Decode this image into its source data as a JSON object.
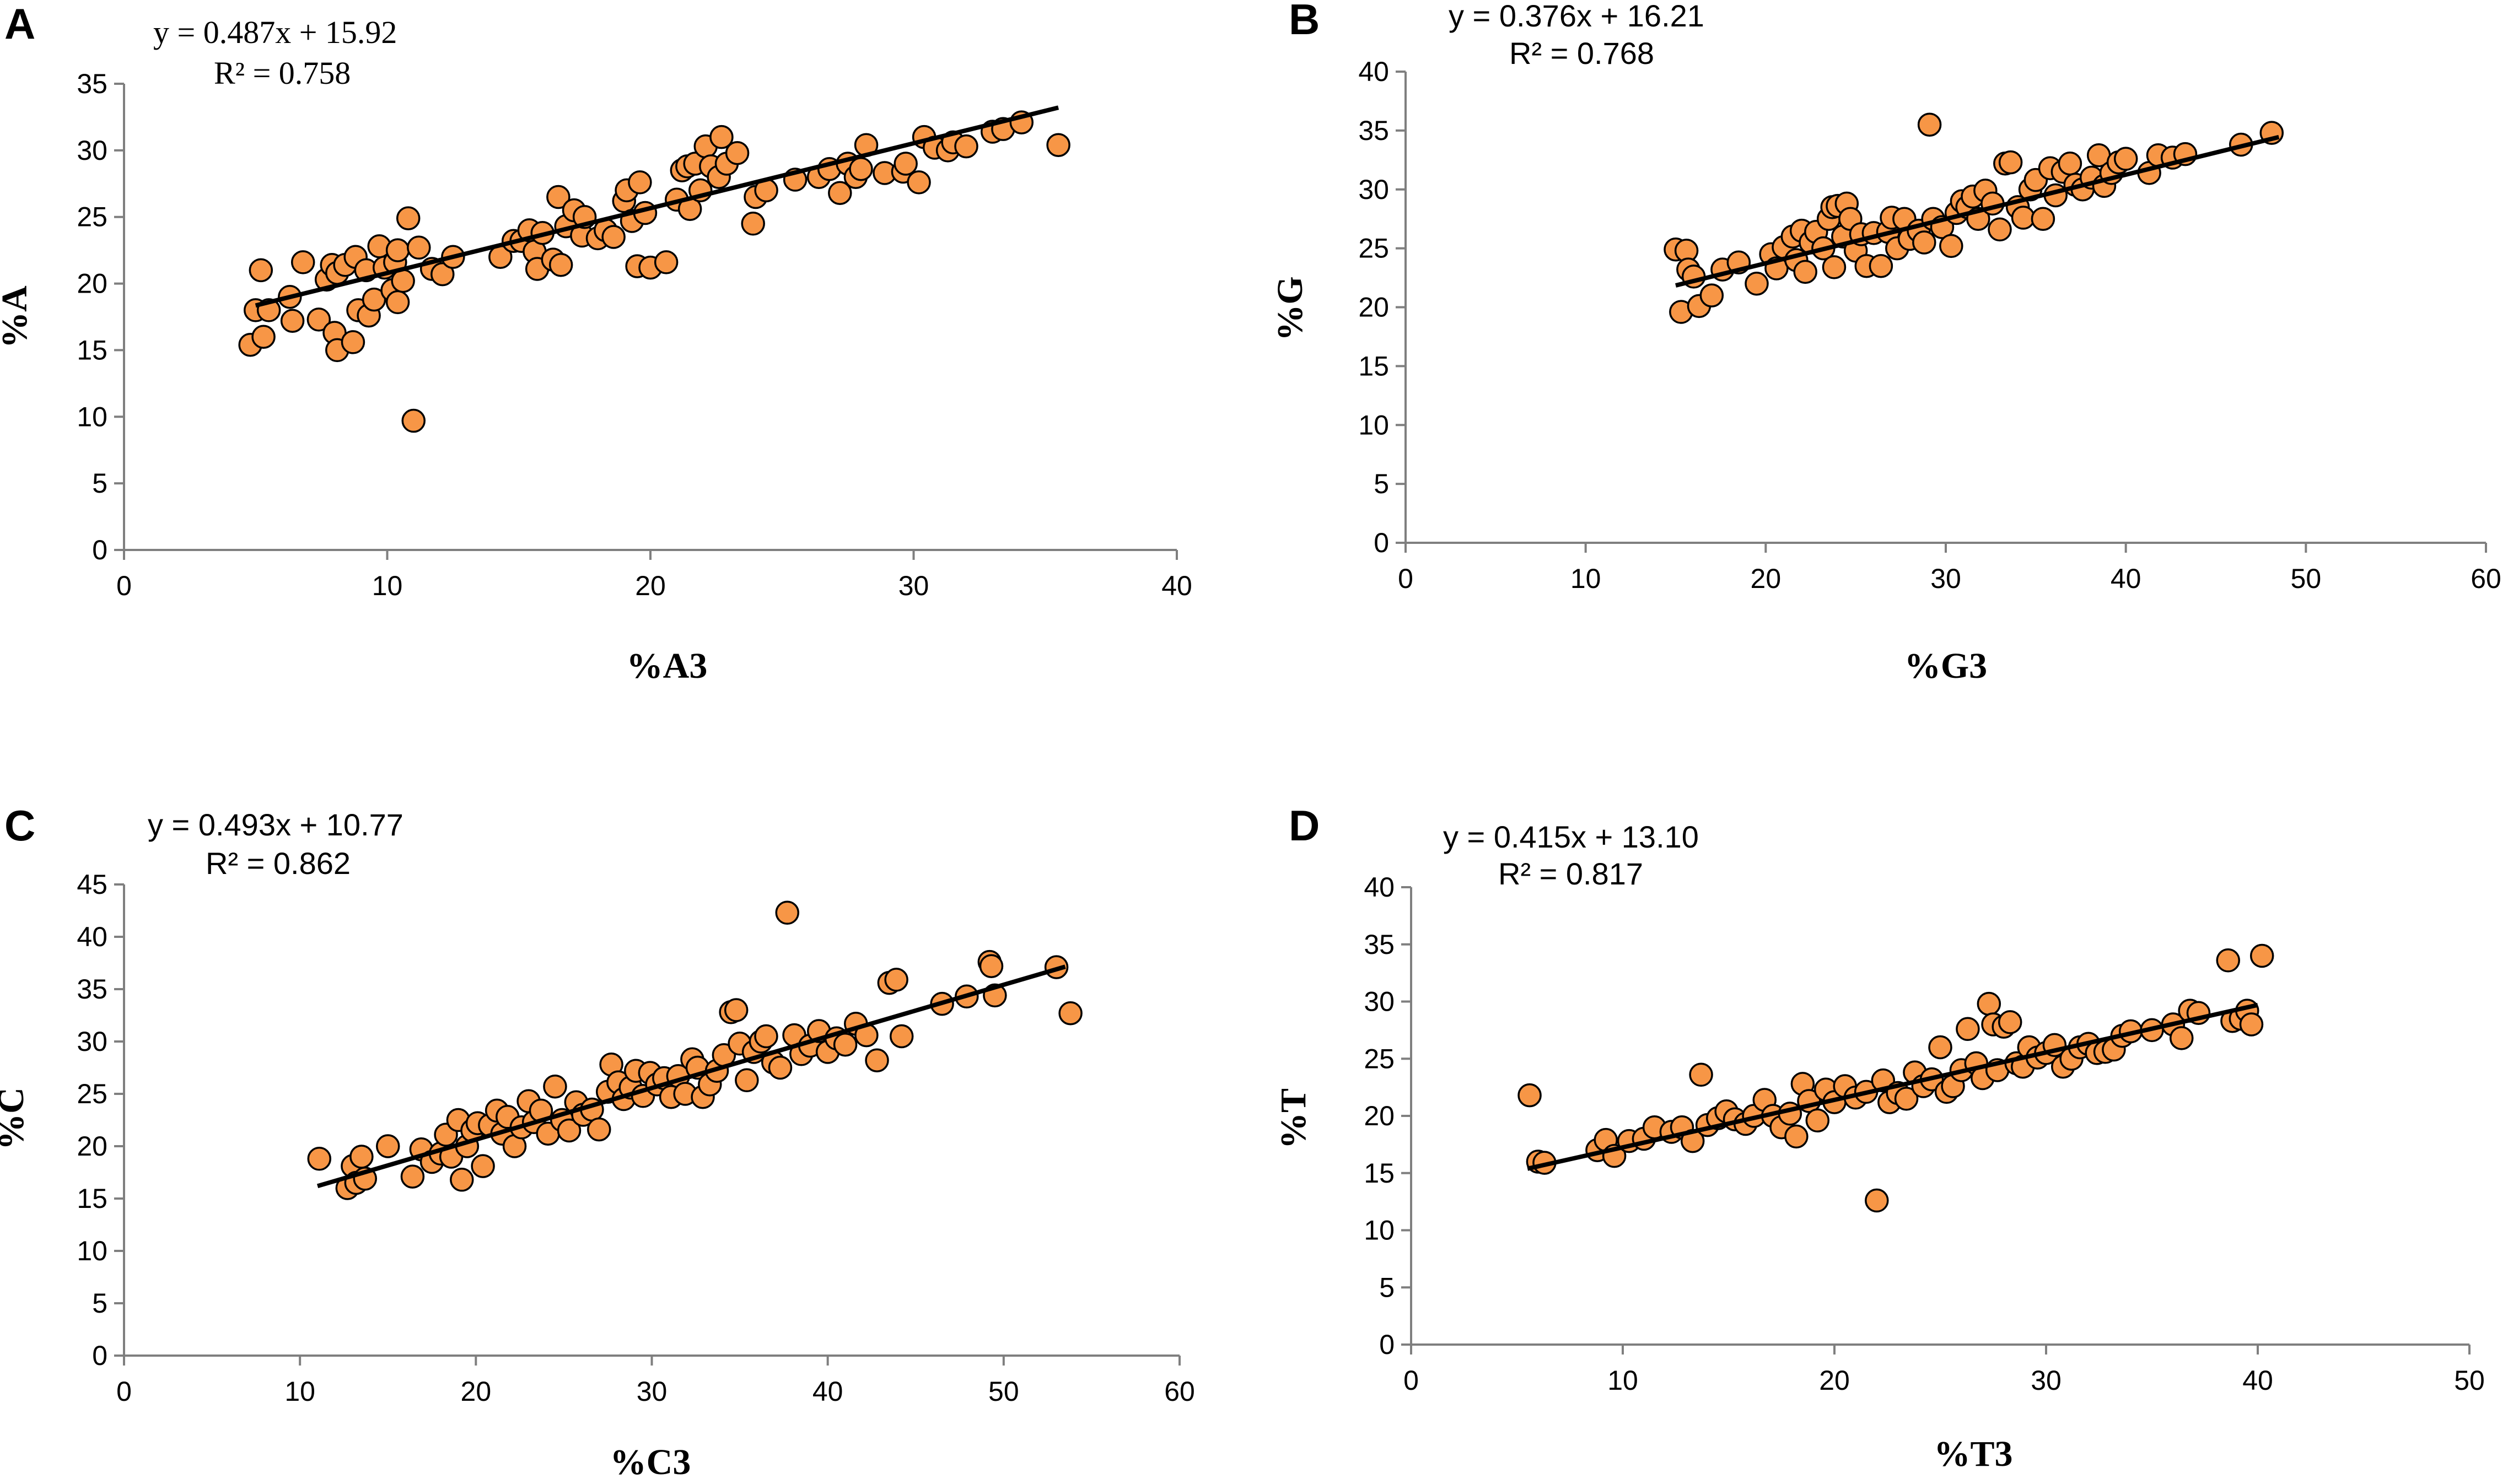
{
  "chart_data": [
    {
      "type": "scatter",
      "panel": "A",
      "equation": "y = 0.487x + 15.92",
      "r2": "R² = 0.758",
      "equation_font": "serif",
      "xlabel": "%A3",
      "ylabel": "%A",
      "xlim": [
        0,
        40
      ],
      "xstep": 10,
      "ylim": [
        0,
        35
      ],
      "ystep": 5,
      "trendline": {
        "slope": 0.487,
        "intercept": 15.92,
        "x_range": [
          5,
          35.5
        ]
      },
      "points": [
        [
          4.8,
          15.4
        ],
        [
          5.0,
          18.0
        ],
        [
          5.2,
          21.0
        ],
        [
          5.3,
          16.0
        ],
        [
          5.5,
          18.0
        ],
        [
          6.3,
          19.0
        ],
        [
          6.4,
          17.2
        ],
        [
          6.8,
          21.6
        ],
        [
          7.4,
          17.3
        ],
        [
          7.7,
          20.3
        ],
        [
          7.9,
          21.4
        ],
        [
          8.0,
          16.3
        ],
        [
          8.1,
          15.0
        ],
        [
          8.1,
          20.8
        ],
        [
          8.4,
          21.4
        ],
        [
          8.7,
          15.6
        ],
        [
          8.8,
          22.0
        ],
        [
          8.9,
          18.0
        ],
        [
          9.2,
          21.0
        ],
        [
          9.3,
          17.6
        ],
        [
          9.5,
          18.8
        ],
        [
          9.7,
          22.8
        ],
        [
          9.9,
          21.2
        ],
        [
          10.2,
          19.5
        ],
        [
          10.3,
          21.6
        ],
        [
          10.4,
          22.5
        ],
        [
          10.4,
          18.6
        ],
        [
          10.6,
          20.2
        ],
        [
          10.8,
          24.9
        ],
        [
          11.0,
          9.7
        ],
        [
          11.2,
          22.7
        ],
        [
          11.7,
          21.1
        ],
        [
          12.1,
          20.7
        ],
        [
          12.5,
          22.0
        ],
        [
          14.3,
          22.0
        ],
        [
          14.8,
          23.2
        ],
        [
          15.1,
          23.2
        ],
        [
          15.4,
          24.0
        ],
        [
          15.6,
          22.4
        ],
        [
          15.7,
          21.1
        ],
        [
          15.9,
          23.8
        ],
        [
          16.3,
          21.8
        ],
        [
          16.5,
          26.5
        ],
        [
          16.6,
          21.4
        ],
        [
          16.8,
          24.3
        ],
        [
          17.1,
          25.5
        ],
        [
          17.4,
          23.6
        ],
        [
          17.5,
          25.0
        ],
        [
          18.0,
          23.4
        ],
        [
          18.3,
          24.0
        ],
        [
          18.6,
          23.5
        ],
        [
          19.0,
          26.2
        ],
        [
          19.1,
          27.0
        ],
        [
          19.3,
          24.7
        ],
        [
          19.5,
          21.3
        ],
        [
          19.6,
          27.6
        ],
        [
          19.8,
          25.3
        ],
        [
          20.0,
          21.2
        ],
        [
          20.6,
          21.6
        ],
        [
          21.0,
          26.3
        ],
        [
          21.2,
          28.5
        ],
        [
          21.4,
          28.8
        ],
        [
          21.5,
          25.6
        ],
        [
          21.7,
          29.0
        ],
        [
          21.9,
          27.0
        ],
        [
          22.1,
          30.3
        ],
        [
          22.3,
          28.8
        ],
        [
          22.6,
          28.0
        ],
        [
          22.7,
          31.0
        ],
        [
          22.9,
          29.0
        ],
        [
          23.3,
          29.8
        ],
        [
          23.9,
          24.5
        ],
        [
          24.0,
          26.5
        ],
        [
          24.4,
          27.0
        ],
        [
          25.5,
          27.8
        ],
        [
          26.4,
          28.0
        ],
        [
          26.8,
          28.6
        ],
        [
          27.2,
          26.8
        ],
        [
          27.5,
          29.0
        ],
        [
          27.8,
          28.0
        ],
        [
          28.0,
          28.6
        ],
        [
          28.2,
          30.4
        ],
        [
          28.9,
          28.3
        ],
        [
          29.6,
          28.4
        ],
        [
          29.7,
          29.0
        ],
        [
          30.2,
          27.6
        ],
        [
          30.4,
          31.0
        ],
        [
          30.8,
          30.2
        ],
        [
          31.3,
          30.0
        ],
        [
          31.5,
          30.6
        ],
        [
          32.0,
          30.3
        ],
        [
          33.0,
          31.4
        ],
        [
          33.4,
          31.6
        ],
        [
          34.1,
          32.1
        ],
        [
          35.5,
          30.4
        ]
      ]
    },
    {
      "type": "scatter",
      "panel": "B",
      "equation": "y = 0.376x + 16.21",
      "r2": "R² = 0.768",
      "equation_font": "sans",
      "xlabel": "%G3",
      "ylabel": "%G",
      "xlim": [
        0,
        60
      ],
      "xstep": 10,
      "ylim": [
        0,
        40
      ],
      "ystep": 5,
      "trendline": {
        "slope": 0.376,
        "intercept": 16.21,
        "x_range": [
          15,
          48.5
        ]
      },
      "points": [
        [
          15.0,
          24.9
        ],
        [
          15.3,
          19.6
        ],
        [
          15.6,
          24.8
        ],
        [
          15.7,
          23.2
        ],
        [
          16.0,
          22.6
        ],
        [
          16.3,
          20.1
        ],
        [
          17.0,
          21.0
        ],
        [
          17.6,
          23.2
        ],
        [
          18.5,
          23.8
        ],
        [
          19.5,
          22.0
        ],
        [
          20.3,
          24.5
        ],
        [
          20.6,
          23.3
        ],
        [
          21.0,
          25.1
        ],
        [
          21.5,
          26.0
        ],
        [
          21.7,
          24.0
        ],
        [
          22.0,
          26.5
        ],
        [
          22.2,
          23.0
        ],
        [
          22.5,
          25.5
        ],
        [
          22.8,
          26.4
        ],
        [
          23.2,
          25.0
        ],
        [
          23.5,
          27.5
        ],
        [
          23.7,
          28.5
        ],
        [
          23.8,
          23.4
        ],
        [
          24.0,
          28.6
        ],
        [
          24.3,
          26.0
        ],
        [
          24.5,
          28.8
        ],
        [
          24.7,
          27.5
        ],
        [
          25.0,
          24.8
        ],
        [
          25.3,
          26.2
        ],
        [
          25.6,
          23.5
        ],
        [
          26.0,
          26.3
        ],
        [
          26.4,
          23.5
        ],
        [
          26.8,
          26.4
        ],
        [
          27.0,
          27.6
        ],
        [
          27.3,
          25.0
        ],
        [
          27.7,
          27.5
        ],
        [
          28.0,
          25.8
        ],
        [
          28.5,
          26.5
        ],
        [
          28.8,
          25.5
        ],
        [
          29.1,
          35.5
        ],
        [
          29.3,
          27.5
        ],
        [
          29.8,
          26.8
        ],
        [
          30.3,
          25.2
        ],
        [
          30.6,
          28.0
        ],
        [
          30.9,
          29.0
        ],
        [
          31.2,
          28.5
        ],
        [
          31.5,
          29.4
        ],
        [
          31.8,
          27.5
        ],
        [
          32.2,
          29.9
        ],
        [
          32.6,
          28.8
        ],
        [
          33.0,
          26.6
        ],
        [
          33.3,
          32.2
        ],
        [
          33.6,
          32.3
        ],
        [
          34.0,
          28.5
        ],
        [
          34.3,
          27.6
        ],
        [
          34.7,
          30.0
        ],
        [
          35.0,
          30.8
        ],
        [
          35.4,
          27.5
        ],
        [
          35.8,
          31.8
        ],
        [
          36.1,
          29.5
        ],
        [
          36.5,
          31.5
        ],
        [
          36.9,
          32.2
        ],
        [
          37.2,
          30.4
        ],
        [
          37.6,
          30.0
        ],
        [
          38.1,
          31.0
        ],
        [
          38.5,
          32.9
        ],
        [
          38.8,
          30.3
        ],
        [
          39.2,
          31.4
        ],
        [
          39.6,
          32.3
        ],
        [
          40.0,
          32.6
        ],
        [
          41.3,
          31.4
        ],
        [
          41.8,
          32.9
        ],
        [
          42.6,
          32.7
        ],
        [
          43.3,
          33.0
        ],
        [
          46.4,
          33.8
        ],
        [
          48.1,
          34.8
        ]
      ]
    },
    {
      "type": "scatter",
      "panel": "C",
      "equation": "y = 0.493x + 10.77",
      "r2": "R² = 0.862",
      "equation_font": "sans",
      "xlabel": "%C3",
      "ylabel": "%C",
      "xlim": [
        0,
        60
      ],
      "xstep": 10,
      "ylim": [
        0,
        45
      ],
      "ystep": 5,
      "trendline": {
        "slope": 0.493,
        "intercept": 10.77,
        "x_range": [
          11,
          53.5
        ]
      },
      "points": [
        [
          11.1,
          18.8
        ],
        [
          12.7,
          16.0
        ],
        [
          13.0,
          18.1
        ],
        [
          13.2,
          16.5
        ],
        [
          13.5,
          19.0
        ],
        [
          13.7,
          16.9
        ],
        [
          15.0,
          20.0
        ],
        [
          16.4,
          17.1
        ],
        [
          16.9,
          19.7
        ],
        [
          17.5,
          18.5
        ],
        [
          18.0,
          19.3
        ],
        [
          18.3,
          21.1
        ],
        [
          18.6,
          19.0
        ],
        [
          19.0,
          22.5
        ],
        [
          19.2,
          16.8
        ],
        [
          19.5,
          20.0
        ],
        [
          19.8,
          21.5
        ],
        [
          20.1,
          22.2
        ],
        [
          20.4,
          18.1
        ],
        [
          20.8,
          22.0
        ],
        [
          21.2,
          23.4
        ],
        [
          21.5,
          21.2
        ],
        [
          21.8,
          22.8
        ],
        [
          22.2,
          20.0
        ],
        [
          22.6,
          21.8
        ],
        [
          23.0,
          24.3
        ],
        [
          23.3,
          22.3
        ],
        [
          23.7,
          23.4
        ],
        [
          24.1,
          21.2
        ],
        [
          24.5,
          25.7
        ],
        [
          24.9,
          22.5
        ],
        [
          25.3,
          21.5
        ],
        [
          25.7,
          24.2
        ],
        [
          26.1,
          23.0
        ],
        [
          26.6,
          23.5
        ],
        [
          27.0,
          21.6
        ],
        [
          27.5,
          25.2
        ],
        [
          27.7,
          27.8
        ],
        [
          28.1,
          26.1
        ],
        [
          28.4,
          24.5
        ],
        [
          28.8,
          25.6
        ],
        [
          29.1,
          27.2
        ],
        [
          29.5,
          24.8
        ],
        [
          29.9,
          27.0
        ],
        [
          30.3,
          25.9
        ],
        [
          30.7,
          26.5
        ],
        [
          31.1,
          24.7
        ],
        [
          31.5,
          26.7
        ],
        [
          31.9,
          25.0
        ],
        [
          32.3,
          28.3
        ],
        [
          32.6,
          27.5
        ],
        [
          32.9,
          24.7
        ],
        [
          33.3,
          25.9
        ],
        [
          33.7,
          27.2
        ],
        [
          34.1,
          28.7
        ],
        [
          34.5,
          32.8
        ],
        [
          34.8,
          33.0
        ],
        [
          35.0,
          29.8
        ],
        [
          35.4,
          26.3
        ],
        [
          35.8,
          29.0
        ],
        [
          36.2,
          30.0
        ],
        [
          36.5,
          30.5
        ],
        [
          36.9,
          28.0
        ],
        [
          37.3,
          27.5
        ],
        [
          37.7,
          42.3
        ],
        [
          38.1,
          30.6
        ],
        [
          38.5,
          28.8
        ],
        [
          39.0,
          29.6
        ],
        [
          39.5,
          31.0
        ],
        [
          40.0,
          29.0
        ],
        [
          40.5,
          30.3
        ],
        [
          41.0,
          29.7
        ],
        [
          41.6,
          31.7
        ],
        [
          42.2,
          30.6
        ],
        [
          42.8,
          28.2
        ],
        [
          43.5,
          35.6
        ],
        [
          43.9,
          35.9
        ],
        [
          44.2,
          30.5
        ],
        [
          46.5,
          33.6
        ],
        [
          47.9,
          34.3
        ],
        [
          49.2,
          37.6
        ],
        [
          49.3,
          37.2
        ],
        [
          49.5,
          34.4
        ],
        [
          53.0,
          37.1
        ],
        [
          53.8,
          32.7
        ]
      ]
    },
    {
      "type": "scatter",
      "panel": "D",
      "equation": "y = 0.415x + 13.10",
      "r2": "R² = 0.817",
      "equation_font": "sans",
      "xlabel": "%T3",
      "ylabel": "%T",
      "xlim": [
        0,
        50
      ],
      "xstep": 10,
      "ylim": [
        0,
        40
      ],
      "ystep": 5,
      "trendline": {
        "slope": 0.415,
        "intercept": 13.1,
        "x_range": [
          5.5,
          40
        ]
      },
      "points": [
        [
          5.6,
          21.8
        ],
        [
          6.0,
          16.0
        ],
        [
          6.3,
          15.9
        ],
        [
          8.8,
          17.0
        ],
        [
          9.2,
          17.9
        ],
        [
          9.6,
          16.5
        ],
        [
          10.3,
          17.8
        ],
        [
          11.0,
          18.0
        ],
        [
          11.5,
          19.0
        ],
        [
          12.3,
          18.6
        ],
        [
          12.8,
          19.0
        ],
        [
          13.3,
          17.8
        ],
        [
          13.7,
          23.6
        ],
        [
          14.0,
          19.2
        ],
        [
          14.5,
          19.8
        ],
        [
          14.9,
          20.4
        ],
        [
          15.3,
          19.7
        ],
        [
          15.8,
          19.3
        ],
        [
          16.2,
          20.0
        ],
        [
          16.7,
          21.4
        ],
        [
          17.1,
          20.0
        ],
        [
          17.5,
          19.0
        ],
        [
          17.9,
          20.2
        ],
        [
          18.2,
          18.2
        ],
        [
          18.5,
          22.8
        ],
        [
          18.8,
          21.3
        ],
        [
          19.2,
          19.6
        ],
        [
          19.6,
          22.3
        ],
        [
          20.0,
          21.2
        ],
        [
          20.5,
          22.6
        ],
        [
          21.0,
          21.6
        ],
        [
          21.5,
          22.1
        ],
        [
          22.0,
          12.6
        ],
        [
          22.3,
          23.1
        ],
        [
          22.6,
          21.2
        ],
        [
          23.0,
          22.0
        ],
        [
          23.4,
          21.5
        ],
        [
          23.8,
          23.8
        ],
        [
          24.2,
          22.6
        ],
        [
          24.6,
          23.2
        ],
        [
          25.0,
          26.0
        ],
        [
          25.3,
          22.1
        ],
        [
          25.6,
          22.6
        ],
        [
          26.0,
          24.0
        ],
        [
          26.3,
          27.6
        ],
        [
          26.7,
          24.6
        ],
        [
          27.0,
          23.3
        ],
        [
          27.3,
          29.8
        ],
        [
          27.5,
          28.0
        ],
        [
          27.7,
          24.0
        ],
        [
          28.0,
          27.8
        ],
        [
          28.3,
          28.2
        ],
        [
          28.6,
          24.6
        ],
        [
          28.9,
          24.3
        ],
        [
          29.2,
          26.0
        ],
        [
          29.6,
          25.1
        ],
        [
          30.0,
          25.5
        ],
        [
          30.4,
          26.2
        ],
        [
          30.8,
          24.3
        ],
        [
          31.2,
          25.0
        ],
        [
          31.6,
          26.0
        ],
        [
          32.0,
          26.3
        ],
        [
          32.4,
          25.5
        ],
        [
          32.8,
          25.6
        ],
        [
          33.2,
          25.8
        ],
        [
          33.6,
          27.0
        ],
        [
          34.0,
          27.4
        ],
        [
          35.0,
          27.5
        ],
        [
          36.0,
          28.0
        ],
        [
          36.4,
          26.8
        ],
        [
          36.8,
          29.2
        ],
        [
          37.2,
          29.0
        ],
        [
          38.6,
          33.6
        ],
        [
          38.8,
          28.3
        ],
        [
          39.2,
          28.5
        ],
        [
          39.5,
          29.2
        ],
        [
          39.7,
          28.0
        ],
        [
          40.2,
          34.0
        ]
      ]
    }
  ]
}
